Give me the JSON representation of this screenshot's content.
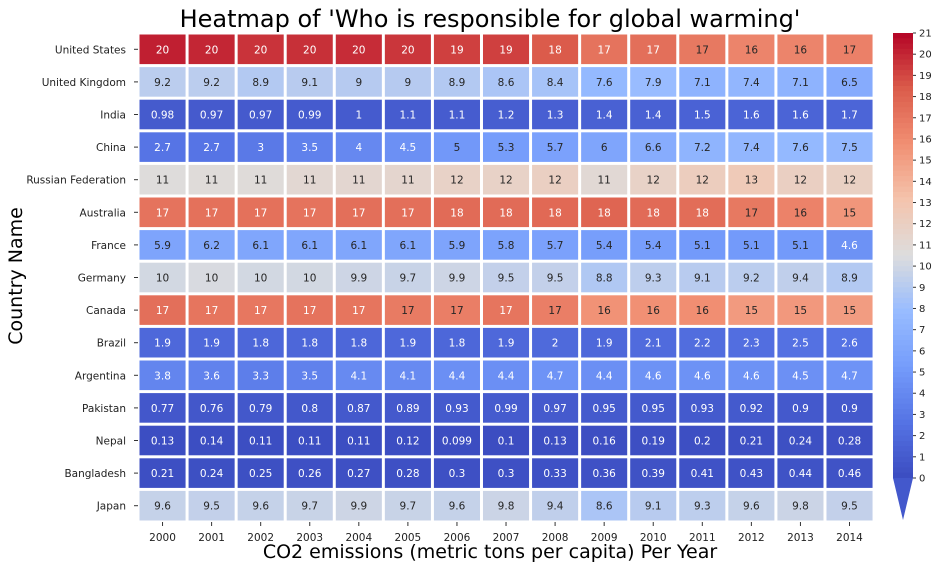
{
  "chart_data": {
    "type": "heatmap",
    "title": "Heatmap of 'Who is responsible for global warming'",
    "xlabel": "CO2 emissions (metric tons per capita) Per Year",
    "ylabel": "Country Name",
    "colormap": "coolwarm",
    "value_range": [
      0,
      21
    ],
    "colorbar_ticks": [
      0,
      1,
      2,
      3,
      4,
      5,
      6,
      7,
      8,
      9,
      10,
      11,
      12,
      13,
      14,
      15,
      16,
      17,
      18,
      19,
      20,
      21
    ],
    "x": [
      "2000",
      "2001",
      "2002",
      "2003",
      "2004",
      "2005",
      "2006",
      "2007",
      "2008",
      "2009",
      "2010",
      "2011",
      "2012",
      "2013",
      "2014"
    ],
    "y": [
      "United States",
      "United Kingdom",
      "India",
      "China",
      "Russian Federation",
      "Australia",
      "France",
      "Germany",
      "Canada",
      "Brazil",
      "Argentina",
      "Pakistan",
      "Nepal",
      "Bangladesh",
      "Japan"
    ],
    "labels": [
      [
        "20",
        "20",
        "20",
        "20",
        "20",
        "20",
        "19",
        "19",
        "18",
        "17",
        "17",
        "17",
        "16",
        "16",
        "17"
      ],
      [
        "9.2",
        "9.2",
        "8.9",
        "9.1",
        "9",
        "9",
        "8.9",
        "8.6",
        "8.4",
        "7.6",
        "7.9",
        "7.1",
        "7.4",
        "7.1",
        "6.5"
      ],
      [
        "0.98",
        "0.97",
        "0.97",
        "0.99",
        "1",
        "1.1",
        "1.1",
        "1.2",
        "1.3",
        "1.4",
        "1.4",
        "1.5",
        "1.6",
        "1.6",
        "1.7"
      ],
      [
        "2.7",
        "2.7",
        "3",
        "3.5",
        "4",
        "4.5",
        "5",
        "5.3",
        "5.7",
        "6",
        "6.6",
        "7.2",
        "7.4",
        "7.6",
        "7.5"
      ],
      [
        "11",
        "11",
        "11",
        "11",
        "11",
        "11",
        "12",
        "12",
        "12",
        "11",
        "12",
        "12",
        "13",
        "12",
        "12"
      ],
      [
        "17",
        "17",
        "17",
        "17",
        "17",
        "17",
        "18",
        "18",
        "18",
        "18",
        "18",
        "18",
        "17",
        "16",
        "15"
      ],
      [
        "5.9",
        "6.2",
        "6.1",
        "6.1",
        "6.1",
        "6.1",
        "5.9",
        "5.8",
        "5.7",
        "5.4",
        "5.4",
        "5.1",
        "5.1",
        "5.1",
        "4.6"
      ],
      [
        "10",
        "10",
        "10",
        "10",
        "9.9",
        "9.7",
        "9.9",
        "9.5",
        "9.5",
        "8.8",
        "9.3",
        "9.1",
        "9.2",
        "9.4",
        "8.9"
      ],
      [
        "17",
        "17",
        "17",
        "17",
        "17",
        "17",
        "17",
        "17",
        "17",
        "16",
        "16",
        "16",
        "15",
        "15",
        "15"
      ],
      [
        "1.9",
        "1.9",
        "1.8",
        "1.8",
        "1.8",
        "1.9",
        "1.8",
        "1.9",
        "2",
        "1.9",
        "2.1",
        "2.2",
        "2.3",
        "2.5",
        "2.6"
      ],
      [
        "3.8",
        "3.6",
        "3.3",
        "3.5",
        "4.1",
        "4.1",
        "4.4",
        "4.4",
        "4.7",
        "4.4",
        "4.6",
        "4.6",
        "4.6",
        "4.5",
        "4.7"
      ],
      [
        "0.77",
        "0.76",
        "0.79",
        "0.8",
        "0.87",
        "0.89",
        "0.93",
        "0.99",
        "0.97",
        "0.95",
        "0.95",
        "0.93",
        "0.92",
        "0.9",
        "0.9"
      ],
      [
        "0.13",
        "0.14",
        "0.11",
        "0.11",
        "0.11",
        "0.12",
        "0.099",
        "0.1",
        "0.13",
        "0.16",
        "0.19",
        "0.2",
        "0.21",
        "0.24",
        "0.28"
      ],
      [
        "0.21",
        "0.24",
        "0.25",
        "0.26",
        "0.27",
        "0.28",
        "0.3",
        "0.3",
        "0.33",
        "0.36",
        "0.39",
        "0.41",
        "0.43",
        "0.44",
        "0.46"
      ],
      [
        "9.6",
        "9.5",
        "9.6",
        "9.7",
        "9.9",
        "9.7",
        "9.6",
        "9.8",
        "9.4",
        "8.6",
        "9.1",
        "9.3",
        "9.6",
        "9.8",
        "9.5"
      ]
    ],
    "values": [
      [
        20.2,
        20.0,
        19.6,
        19.7,
        19.8,
        19.5,
        19.2,
        19.2,
        18.4,
        17.2,
        17.4,
        16.9,
        16.3,
        16.3,
        16.5
      ],
      [
        9.2,
        9.2,
        8.9,
        9.1,
        9.0,
        9.0,
        8.9,
        8.6,
        8.4,
        7.6,
        7.9,
        7.1,
        7.4,
        7.1,
        6.5
      ],
      [
        0.98,
        0.97,
        0.97,
        0.99,
        1.0,
        1.1,
        1.1,
        1.2,
        1.3,
        1.4,
        1.4,
        1.5,
        1.6,
        1.6,
        1.7
      ],
      [
        2.7,
        2.7,
        3.0,
        3.5,
        4.0,
        4.5,
        5.0,
        5.3,
        5.7,
        6.0,
        6.6,
        7.2,
        7.4,
        7.6,
        7.5
      ],
      [
        10.6,
        10.7,
        10.7,
        11.1,
        11.2,
        11.3,
        11.7,
        11.7,
        12.0,
        11.0,
        11.7,
        12.2,
        12.5,
        12.0,
        11.9
      ],
      [
        17.2,
        17.3,
        17.3,
        17.2,
        17.4,
        17.4,
        17.6,
        17.6,
        17.7,
        17.9,
        17.6,
        17.5,
        16.9,
        16.4,
        15.4
      ],
      [
        5.9,
        6.2,
        6.1,
        6.1,
        6.1,
        6.1,
        5.9,
        5.8,
        5.7,
        5.4,
        5.4,
        5.1,
        5.1,
        5.1,
        4.6
      ],
      [
        10.1,
        10.3,
        10.1,
        10.1,
        9.9,
        9.7,
        9.9,
        9.5,
        9.5,
        8.8,
        9.3,
        9.1,
        9.2,
        9.4,
        8.9
      ],
      [
        17.4,
        17.1,
        17.0,
        17.2,
        17.1,
        16.8,
        16.6,
        17.1,
        16.6,
        15.6,
        15.7,
        15.8,
        15.2,
        15.3,
        15.1
      ],
      [
        1.9,
        1.9,
        1.8,
        1.8,
        1.8,
        1.9,
        1.8,
        1.9,
        2.0,
        1.9,
        2.1,
        2.2,
        2.3,
        2.5,
        2.6
      ],
      [
        3.8,
        3.6,
        3.3,
        3.5,
        4.1,
        4.1,
        4.4,
        4.4,
        4.7,
        4.4,
        4.6,
        4.6,
        4.6,
        4.5,
        4.7
      ],
      [
        0.77,
        0.76,
        0.79,
        0.8,
        0.87,
        0.89,
        0.93,
        0.99,
        0.97,
        0.95,
        0.95,
        0.93,
        0.92,
        0.9,
        0.9
      ],
      [
        0.13,
        0.14,
        0.11,
        0.11,
        0.11,
        0.12,
        0.099,
        0.1,
        0.13,
        0.16,
        0.19,
        0.2,
        0.21,
        0.24,
        0.28
      ],
      [
        0.21,
        0.24,
        0.25,
        0.26,
        0.27,
        0.28,
        0.3,
        0.3,
        0.33,
        0.36,
        0.39,
        0.41,
        0.43,
        0.44,
        0.46
      ],
      [
        9.6,
        9.5,
        9.6,
        9.7,
        9.9,
        9.7,
        9.6,
        9.8,
        9.4,
        8.6,
        9.1,
        9.3,
        9.6,
        9.8,
        9.5
      ]
    ]
  }
}
